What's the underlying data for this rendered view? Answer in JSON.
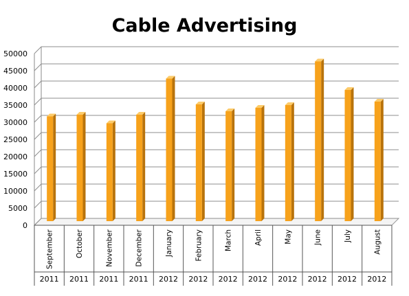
{
  "chart_data": {
    "type": "bar",
    "title": "Cable Advertising",
    "xlabel": "",
    "ylabel": "",
    "ylim": [
      0,
      50000
    ],
    "y_ticks": [
      0,
      5000,
      10000,
      15000,
      20000,
      25000,
      30000,
      35000,
      40000,
      45000,
      50000
    ],
    "categories": [
      "September",
      "October",
      "November",
      "December",
      "January",
      "February",
      "March",
      "April",
      "May",
      "June",
      "July",
      "August"
    ],
    "years": [
      "2011",
      "2011",
      "2011",
      "2011",
      "2012",
      "2012",
      "2012",
      "2012",
      "2012",
      "2012",
      "2012",
      "2012"
    ],
    "values": [
      30500,
      31000,
      28500,
      31000,
      41500,
      34000,
      32000,
      33000,
      33800,
      46500,
      38200,
      34800
    ],
    "grid": true,
    "bar_color": "#F7A21B",
    "bar_side_color": "#B8730C",
    "bar_top_color": "#FCCB6A",
    "legend": "none"
  }
}
